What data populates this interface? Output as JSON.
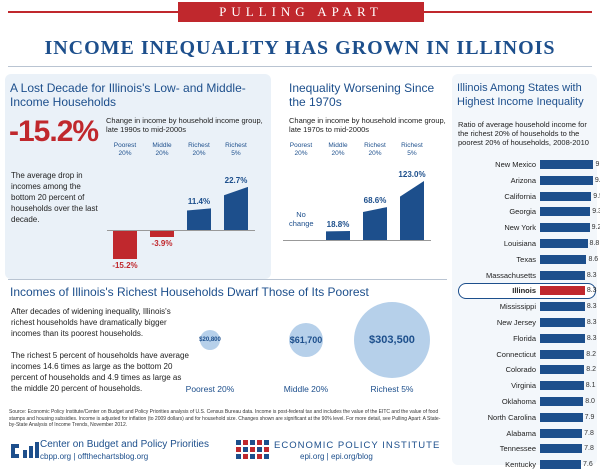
{
  "banner": "PULLING APART",
  "title": "INCOME INEQUALITY HAS GROWN IN ILLINOIS",
  "decade": {
    "title": "A Lost Decade for Illinois's Low- and Middle-Income Households",
    "big_stat": "-15.2%",
    "subtitle": "Change in income by household income group, late 1990s to mid-2000s",
    "description": "The average drop in incomes among the bottom 20 percent of households over the last decade."
  },
  "worsening": {
    "title": "Inequality Worsening Since the 1970s",
    "subtitle": "Change in income by household income group, late 1970s to mid-2000s",
    "no_change": "No change"
  },
  "states_panel": {
    "title": "Illinois Among States with Highest Income Inequality",
    "subtitle": "Ratio of average household income for the richest 20% of households to the poorest 20% of households, 2008-2010"
  },
  "richest": {
    "title": "Incomes of Illinois's Richest Households Dwarf Those of Its Poorest",
    "para1": "After decades of widening inequality, Illinois's richest households have dramatically bigger incomes than its poorest households.",
    "para2": "The richest 5 percent of households have average incomes 14.6 times as large as the bottom 20 percent of households and 4.9 times as large as the middle 20 percent of households."
  },
  "source": "Source: Economic Policy Institute/Center on Budget and Policy Priorities analysis of U.S. Census Bureau data. Income is post-federal tax and includes the value of the EITC and the value of food stamps and housing subsidies. Income is adjusted for inflation (to 2009 dollars) and for household size. Changes shown are significant at the 90% level. For more detail, see Pulling Apart: A State-by-State Analysis of Income Trends, November 2012.",
  "logos": {
    "cbpp_name": "Center on Budget and Policy Priorities",
    "cbpp_url": "cbpp.org | offthechartsblog.org",
    "epi_name": "ECONOMIC POLICY INSTITUTE",
    "epi_url": "epi.org | epi.org/blog"
  },
  "colors": {
    "blue": "#1d4f8c",
    "red": "#c0282d",
    "light": "#b6d0ea",
    "panel": "#eaf1f8"
  },
  "chart_data": [
    {
      "type": "bar",
      "title": "A Lost Decade for Illinois's Low- and Middle-Income Households",
      "categories": [
        "Poorest 20%",
        "Middle 20%",
        "Richest 20%",
        "Richest 5%"
      ],
      "values": [
        -15.2,
        -3.9,
        11.4,
        22.7
      ],
      "labels": [
        "-15.2%",
        "-3.9%",
        "11.4%",
        "22.7%"
      ]
    },
    {
      "type": "bar",
      "title": "Inequality Worsening Since the 1970s",
      "categories": [
        "Poorest 20%",
        "Middle 20%",
        "Richest 20%",
        "Richest 5%"
      ],
      "values": [
        0,
        18.8,
        68.6,
        123.0
      ],
      "labels": [
        "",
        "18.8%",
        "68.6%",
        "123.0%"
      ]
    },
    {
      "type": "scatter",
      "title": "Incomes of Illinois's Richest Households Dwarf Those of Its Poorest",
      "categories": [
        "Poorest 20%",
        "Middle 20%",
        "Richest 5%"
      ],
      "values": [
        20800,
        61700,
        303500
      ],
      "labels": [
        "$20,800",
        "$61,700",
        "$303,500"
      ]
    },
    {
      "type": "bar",
      "title": "Illinois Among States with Highest Income Inequality",
      "categories": [
        "New Mexico",
        "Arizona",
        "California",
        "Georgia",
        "New York",
        "Louisiana",
        "Texas",
        "Massachusetts",
        "Illinois",
        "Mississippi",
        "New Jersey",
        "Florida",
        "Connecticut",
        "Colorado",
        "Virginia",
        "Oklahoma",
        "North Carolina",
        "Alabama",
        "Tennessee",
        "Kentucky"
      ],
      "values": [
        9.9,
        9.8,
        9.5,
        9.3,
        9.2,
        8.8,
        8.6,
        8.3,
        8.3,
        8.3,
        8.3,
        8.3,
        8.2,
        8.2,
        8.1,
        8.0,
        7.9,
        7.8,
        7.8,
        7.6
      ],
      "highlight": "Illinois"
    }
  ]
}
